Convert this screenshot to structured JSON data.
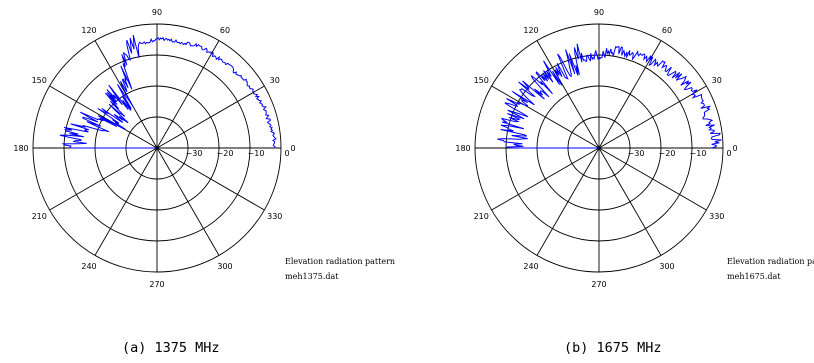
{
  "chart_data": [
    {
      "type": "polar-line",
      "angle_ticks": [
        "0",
        "30",
        "60",
        "90",
        "120",
        "150",
        "180",
        "210",
        "240",
        "270",
        "300",
        "330"
      ],
      "radial_ticks": [
        "0",
        "−10",
        "−20",
        "−30"
      ],
      "radial_range_db": [
        -40,
        0
      ],
      "grid": true,
      "annotation": [
        "Elevation radiation pattern",
        "meh1375.dat"
      ],
      "caption": "(a) 1375 MHz",
      "line_color": "#0000ff",
      "series": [
        {
          "angle_deg": [
            0,
            5,
            10,
            15,
            20,
            25,
            30,
            35,
            40,
            45,
            50,
            55,
            60,
            65,
            70,
            75,
            80,
            85,
            90,
            95,
            100,
            105,
            110,
            115,
            120,
            125,
            130,
            135,
            140,
            145,
            150,
            155,
            160,
            165,
            170,
            175,
            180
          ],
          "db": [
            -2,
            -2,
            -2.5,
            -3,
            -3,
            -3.5,
            -4,
            -4,
            -4.5,
            -5,
            -4.5,
            -5,
            -5,
            -4.5,
            -4.5,
            -5,
            -5,
            -4.5,
            -5,
            -5.5,
            -6,
            -8,
            -12,
            -17,
            -20,
            -22,
            -16,
            -22,
            -24,
            -20,
            -24,
            -15,
            -21,
            -15,
            -12,
            -14,
            -12
          ]
        }
      ]
    },
    {
      "type": "polar-line",
      "angle_ticks": [
        "0",
        "30",
        "60",
        "90",
        "120",
        "150",
        "180",
        "210",
        "240",
        "270",
        "300",
        "330"
      ],
      "radial_ticks": [
        "0",
        "−10",
        "−20",
        "−30"
      ],
      "radial_range_db": [
        -40,
        0
      ],
      "grid": true,
      "annotation": [
        "Elevation radiation pattern",
        "meh1675.dat"
      ],
      "caption": "(b) 1675 MHz",
      "line_color": "#0000ff",
      "series": [
        {
          "angle_deg": [
            0,
            5,
            10,
            15,
            20,
            25,
            30,
            35,
            40,
            45,
            50,
            55,
            60,
            65,
            70,
            75,
            80,
            85,
            90,
            95,
            100,
            105,
            110,
            115,
            120,
            125,
            130,
            135,
            140,
            145,
            150,
            155,
            160,
            165,
            170,
            175,
            180
          ],
          "db": [
            -2,
            -2,
            -3,
            -3.5,
            -3,
            -4,
            -4.5,
            -5,
            -5.5,
            -6,
            -6.5,
            -7,
            -7,
            -7.5,
            -8,
            -8,
            -8.5,
            -9,
            -9.5,
            -10,
            -10,
            -11,
            -11,
            -12,
            -12,
            -11,
            -12,
            -12,
            -11,
            -11,
            -11,
            -11,
            -12,
            -11,
            -12,
            -12,
            -12
          ]
        }
      ]
    }
  ]
}
